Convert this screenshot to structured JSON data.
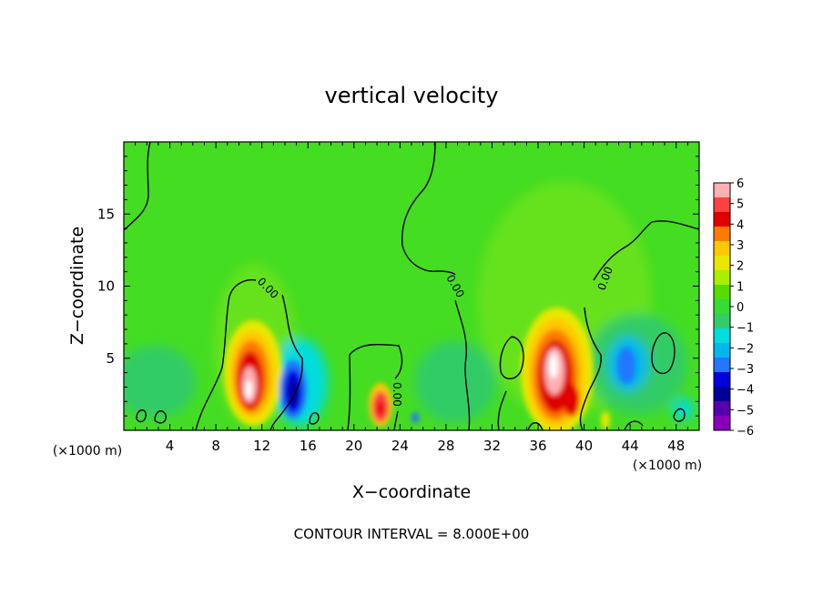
{
  "chart_data": {
    "type": "heatmap",
    "title": "vertical velocity",
    "xlabel": "X−coordinate",
    "ylabel": "Z−coordinate",
    "x_unit_left": "(×1000 m)",
    "x_unit_right": "(×1000 m)",
    "footer": "CONTOUR INTERVAL = 8.000E+00",
    "xlim": [
      0,
      50
    ],
    "ylim": [
      0,
      20
    ],
    "x_ticks": [
      "4",
      "8",
      "12",
      "16",
      "20",
      "24",
      "28",
      "32",
      "36",
      "40",
      "44",
      "48"
    ],
    "y_ticks": [
      "5",
      "10",
      "15"
    ],
    "colorbar": {
      "ticks": [
        "6",
        "5",
        "4",
        "3",
        "2",
        "1",
        "0",
        "−1",
        "−2",
        "−3",
        "−4",
        "−5",
        "−6"
      ],
      "colors": [
        "#ffb0b0",
        "#ff4040",
        "#e00000",
        "#ff7a00",
        "#ffc800",
        "#e8e800",
        "#aaee00",
        "#55dd00",
        "#33dd33",
        "#33cc66",
        "#00dddd",
        "#00b8ee",
        "#2277ff",
        "#0000dd",
        "#000099",
        "#5500aa",
        "#8800bb"
      ]
    },
    "features": [
      {
        "kind": "updraft",
        "x": 11,
        "z": 3.5,
        "peak": 6
      },
      {
        "kind": "downdraft",
        "x": 14.5,
        "z": 2.5,
        "peak": -4
      },
      {
        "kind": "updraft",
        "x": 22,
        "z": 1.5,
        "peak": 3
      },
      {
        "kind": "updraft",
        "x": 37.5,
        "z": 4,
        "peak": 6
      },
      {
        "kind": "downdraft",
        "x": 43,
        "z": 4.5,
        "peak": -2.5
      }
    ],
    "contour_labels": [
      {
        "text": "0.00",
        "x": 12,
        "z": 9.5
      },
      {
        "text": "0.00",
        "x": 29.5,
        "z": 9.5
      },
      {
        "text": "0.00",
        "x": 42,
        "z": 11
      },
      {
        "text": "0.00",
        "x": 23.5,
        "z": 2
      }
    ]
  }
}
